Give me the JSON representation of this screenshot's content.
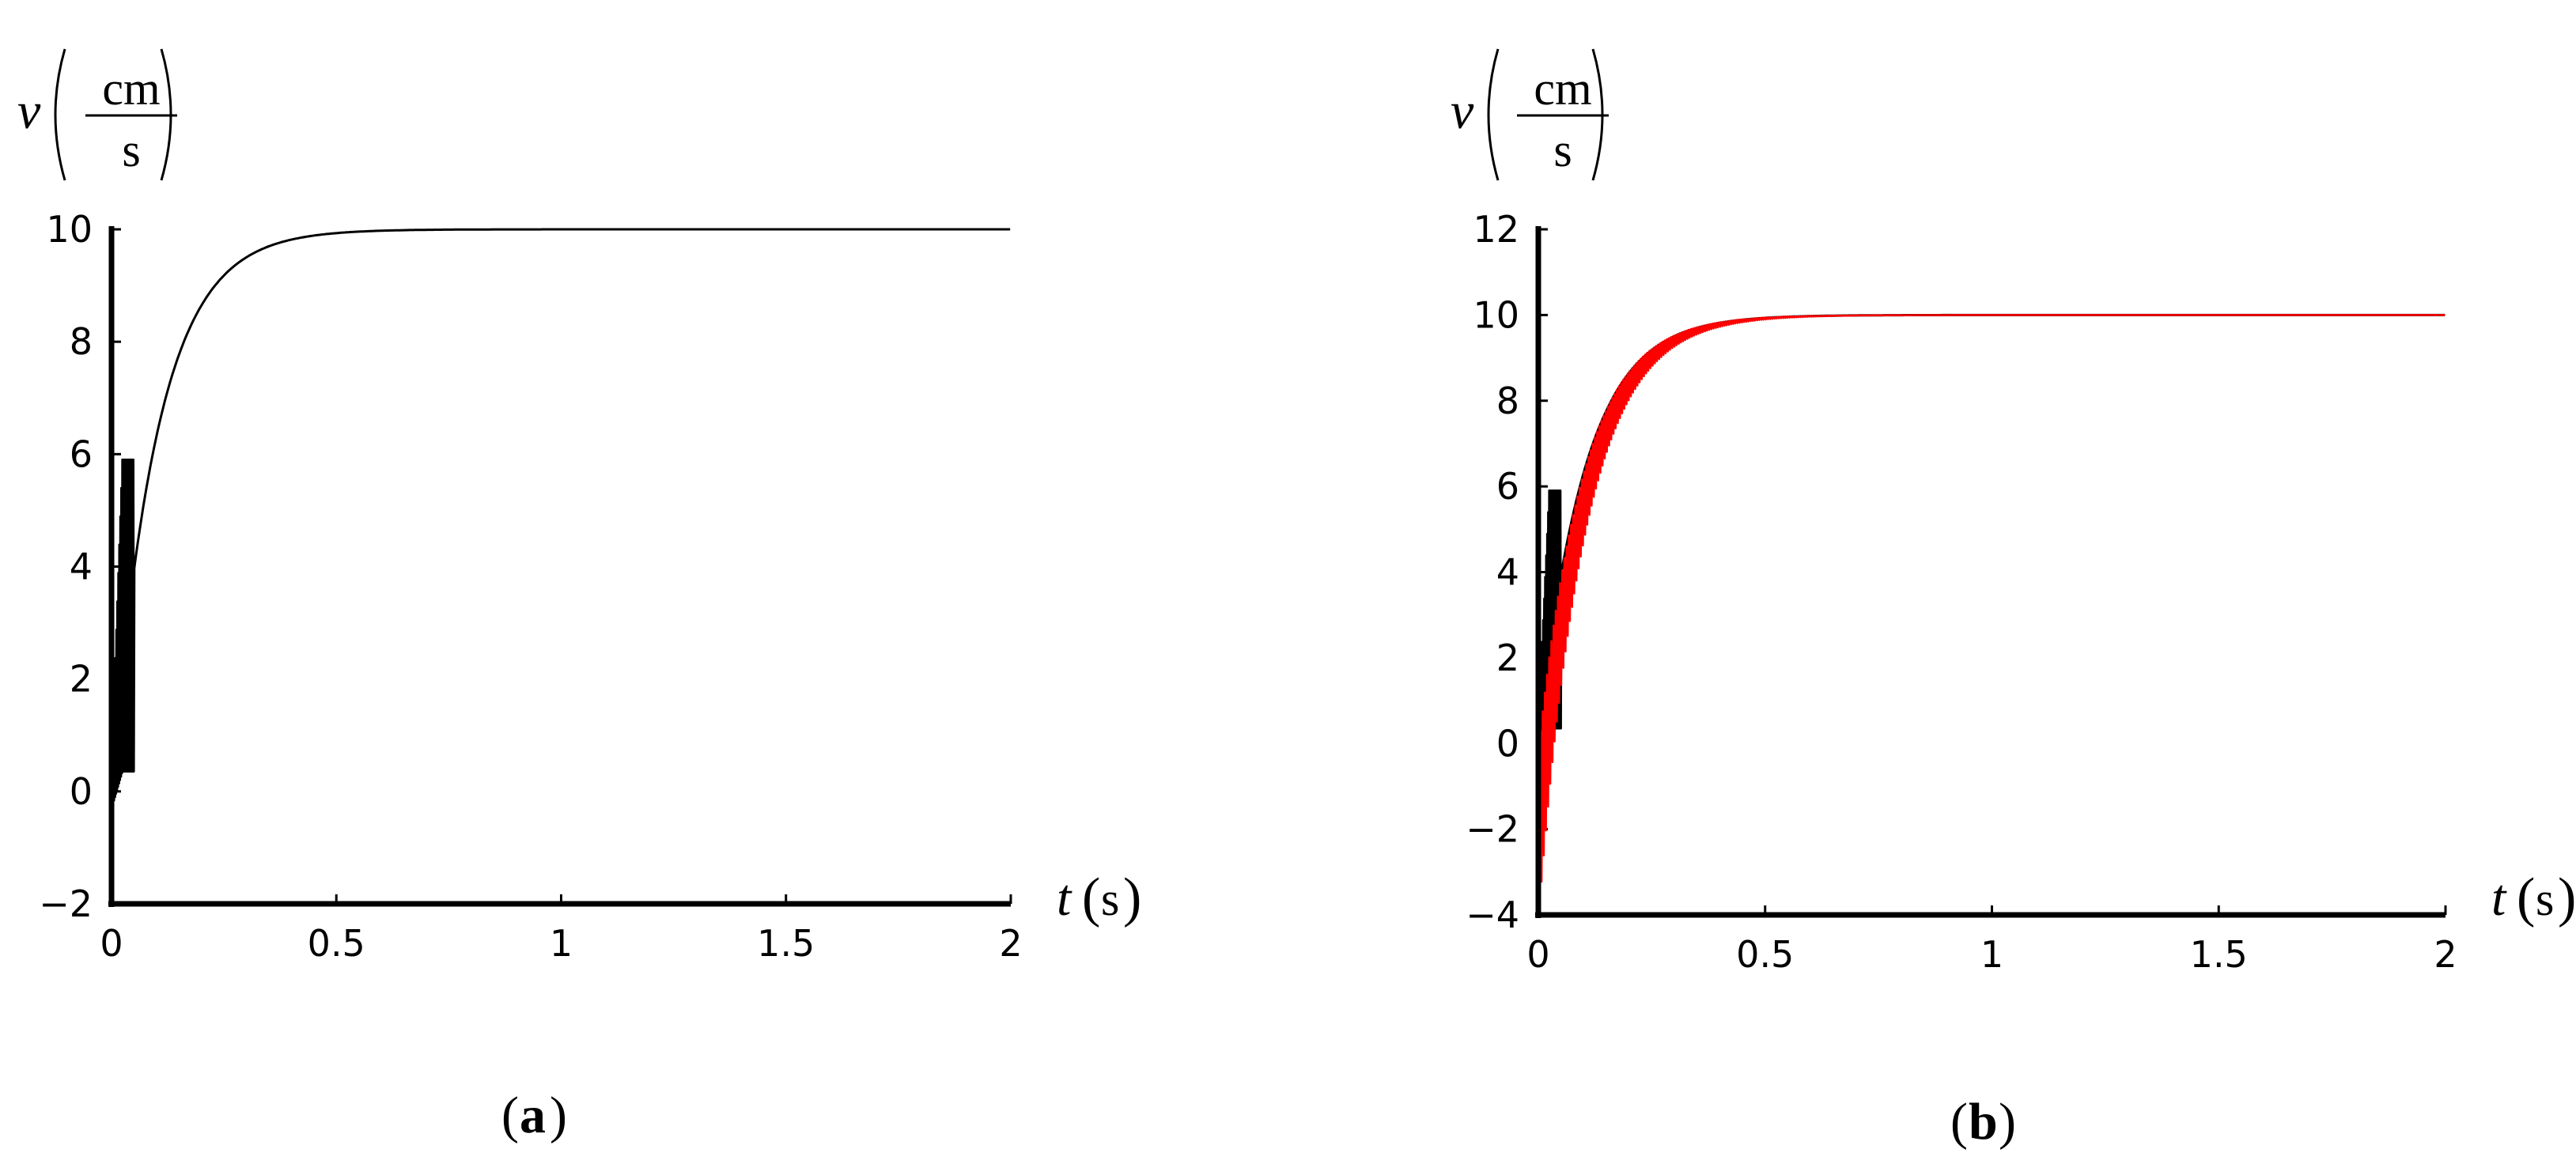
{
  "chart_data": [
    {
      "type": "line",
      "panel_label": "a",
      "ylabel": {
        "var": "v",
        "unit_num": "cm",
        "unit_den": "s"
      },
      "xlabel": {
        "var": "t",
        "unit": "s"
      },
      "xlim": [
        0,
        2
      ],
      "ylim": [
        -2,
        10
      ],
      "x_ticks": [
        "0",
        "0.5",
        "1",
        "1.5",
        "2"
      ],
      "y_ticks": [
        "-2",
        "0",
        "2",
        "4",
        "6",
        "8",
        "10"
      ],
      "grid": false,
      "series": [
        {
          "color": "#000000",
          "model": {
            "v_final": 10,
            "time_constant": 0.1,
            "oscillation_until": 0.05,
            "oscillation_range": [
              -0.4,
              5.9
            ]
          }
        }
      ]
    },
    {
      "type": "line",
      "panel_label": "b",
      "ylabel": {
        "var": "v",
        "unit_num": "cm",
        "unit_den": "s"
      },
      "xlabel": {
        "var": "t",
        "unit": "s"
      },
      "xlim": [
        0,
        2
      ],
      "ylim": [
        -4,
        12
      ],
      "x_ticks": [
        "0",
        "0.5",
        "1",
        "1.5",
        "2"
      ],
      "y_ticks": [
        "-4",
        "-2",
        "0",
        "2",
        "4",
        "6",
        "8",
        "10",
        "12"
      ],
      "grid": false,
      "series": [
        {
          "color": "#000000",
          "model": {
            "v_final": 10,
            "time_constant": 0.1,
            "oscillation_until": 0.05,
            "oscillation_range": [
              -0.4,
              5.9
            ]
          }
        },
        {
          "color": "#ff0000",
          "model": {
            "v_final": 10,
            "time_constant": 0.1,
            "oscillation_until": 0.75,
            "oscillation_amplitude": 2.0,
            "start_value": -2.2
          }
        }
      ]
    }
  ]
}
